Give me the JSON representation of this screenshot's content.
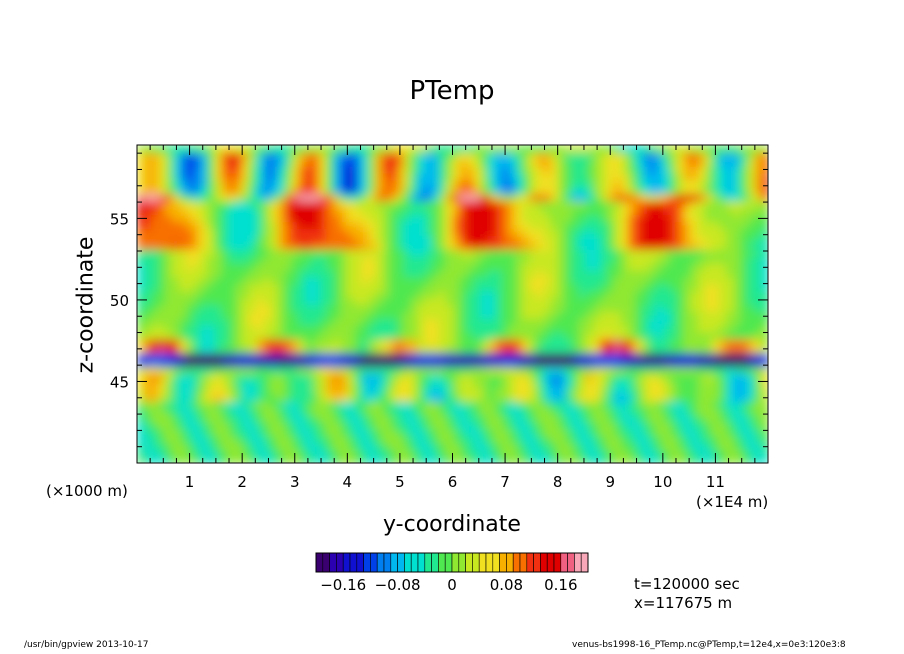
{
  "chart_data": {
    "type": "heatmap",
    "title": "PTemp",
    "xlabel": "y-coordinate",
    "ylabel": "z-coordinate",
    "x_unit": "(×1E4 m)",
    "y_unit": "(×1000 m)",
    "x_ticks": [
      "1",
      "2",
      "3",
      "4",
      "5",
      "6",
      "7",
      "8",
      "9",
      "10",
      "11"
    ],
    "y_ticks": [
      "45",
      "50",
      "55"
    ],
    "xlim": [
      0,
      12
    ],
    "ylim": [
      40,
      59.5
    ],
    "colorbar": {
      "ticks": [
        "−0.16",
        "−0.08",
        "0",
        "0.08",
        "0.16"
      ],
      "tick_values": [
        -0.16,
        -0.08,
        0,
        0.08,
        0.16
      ],
      "range": [
        -0.2,
        0.2
      ]
    },
    "annotations": [
      "t=120000 sec",
      "x=117675 m"
    ]
  },
  "footer": {
    "left": "/usr/bin/gpview   2013-10-17",
    "right": "venus-bs1998-16_PTemp.nc@PTemp,t=12e4,x=0e3:120e3:8"
  }
}
